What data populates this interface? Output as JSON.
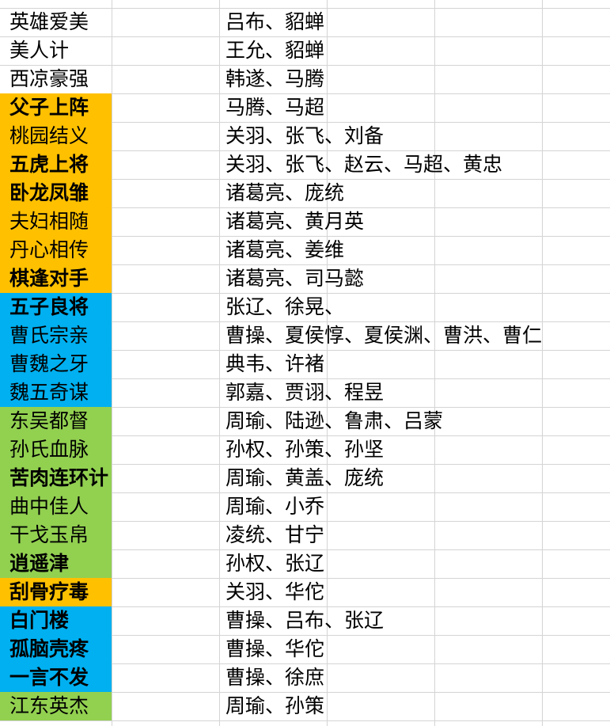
{
  "rows": [
    {
      "name": "英雄爱美",
      "members": "吕布、貂蝉"
    },
    {
      "name": "美人计",
      "members": "王允、貂蝉"
    },
    {
      "name": "西凉豪强",
      "members": "韩遂、马腾"
    },
    {
      "name": "父子上阵",
      "members": "马腾、马超",
      "fill": "#ffc000",
      "bold": true
    },
    {
      "name": "桃园结义",
      "members": "关羽、张飞、刘备",
      "fill": "#ffc000"
    },
    {
      "name": "五虎上将",
      "members": "关羽、张飞、赵云、马超、黄忠",
      "fill": "#ffc000",
      "bold": true
    },
    {
      "name": "卧龙凤雏",
      "members": "诸葛亮、庞统",
      "fill": "#ffc000",
      "bold": true
    },
    {
      "name": "夫妇相随",
      "members": "诸葛亮、黄月英",
      "fill": "#ffc000"
    },
    {
      "name": "丹心相传",
      "members": "诸葛亮、姜维",
      "fill": "#ffc000"
    },
    {
      "name": "棋逢对手",
      "members": "诸葛亮、司马懿",
      "fill": "#ffc000",
      "bold": true
    },
    {
      "name": "五子良将",
      "members": "张辽、徐晃、",
      "fill": "#00b0f0",
      "bold": true
    },
    {
      "name": "曹氏宗亲",
      "members": "曹操、夏侯惇、夏侯渊、曹洪、曹仁",
      "fill": "#00b0f0"
    },
    {
      "name": "曹魏之牙",
      "members": "典韦、许褚",
      "fill": "#00b0f0"
    },
    {
      "name": "魏五奇谋",
      "members": "郭嘉、贾诩、程昱",
      "fill": "#00b0f0"
    },
    {
      "name": "东吴都督",
      "members": "周瑜、陆逊、鲁肃、吕蒙",
      "fill": "#92d050"
    },
    {
      "name": "孙氏血脉",
      "members": "孙权、孙策、孙坚",
      "fill": "#92d050"
    },
    {
      "name": "苦肉连环计",
      "members": "周瑜、黄盖、庞统",
      "fill": "#92d050",
      "bold": true
    },
    {
      "name": "曲中佳人",
      "members": "周瑜、小乔",
      "fill": "#92d050"
    },
    {
      "name": "干戈玉帛",
      "members": "凌统、甘宁",
      "fill": "#92d050"
    },
    {
      "name": "逍遥津",
      "members": "孙权、张辽",
      "fill": "#92d050",
      "bold": true
    },
    {
      "name": "刮骨疗毒",
      "members": "关羽、华佗",
      "fill": "#ffc000",
      "bold": true
    },
    {
      "name": "白门楼",
      "members": "曹操、吕布、张辽",
      "fill": "#00b0f0",
      "bold": true
    },
    {
      "name": "孤脑壳疼",
      "members": "曹操、华佗",
      "fill": "#00b0f0",
      "bold": true
    },
    {
      "name": "一言不发",
      "members": "曹操、徐庶",
      "fill": "#00b0f0",
      "bold": true
    },
    {
      "name": "江东英杰",
      "members": "周瑜、孙策",
      "fill": "#92d050"
    }
  ]
}
